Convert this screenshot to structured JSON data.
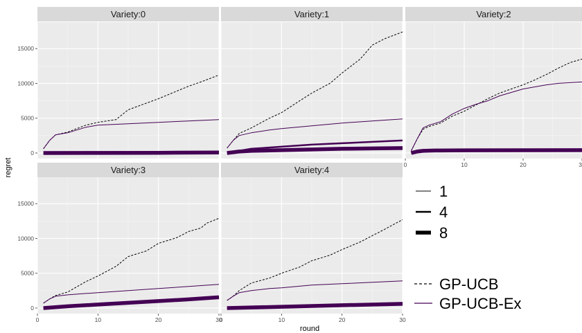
{
  "chart_data": {
    "type": "line",
    "xlabel": "round",
    "ylabel": "regret",
    "xlim": [
      0,
      30
    ],
    "ylim": [
      -800,
      18800
    ],
    "x_ticks": [
      0,
      10,
      20,
      30
    ],
    "y_ticks": [
      0,
      5000,
      10000,
      15000
    ],
    "grid": true,
    "facet_layout": "3 columns x 2 rows, shared axes",
    "legend_position": "right",
    "legend_sizes": {
      "labels": [
        "1",
        "4",
        "8"
      ],
      "line_widths": [
        1,
        2.5,
        5.5
      ]
    },
    "legend_methods": [
      {
        "label": "GP-UCB",
        "dash": "dashed",
        "color": "#000000"
      },
      {
        "label": "GP-UCB-Ex",
        "dash": "solid",
        "color": "#440154"
      }
    ],
    "panels": [
      {
        "title": "Variety:0",
        "series": [
          {
            "method": "GP-UCB",
            "size": 1,
            "x": [
              1,
              2,
              3,
              5,
              8,
              10,
              13,
              15,
              20,
              25,
              27,
              30
            ],
            "y": [
              600,
              1800,
              2600,
              3000,
              4000,
              4400,
              4800,
              6200,
              7800,
              9600,
              10200,
              11200
            ]
          },
          {
            "method": "GP-UCB-Ex",
            "size": 1,
            "x": [
              1,
              2,
              3,
              5,
              8,
              10,
              15,
              20,
              25,
              30
            ],
            "y": [
              600,
              1800,
              2600,
              2900,
              3700,
              4000,
              4200,
              4400,
              4600,
              4800
            ]
          },
          {
            "method": "GP-UCB-Ex",
            "size": 4,
            "x": [
              1,
              10,
              20,
              30
            ],
            "y": [
              0,
              10,
              30,
              80
            ]
          },
          {
            "method": "GP-UCB-Ex",
            "size": 8,
            "x": [
              1,
              10,
              20,
              30
            ],
            "y": [
              0,
              10,
              30,
              80
            ]
          }
        ]
      },
      {
        "title": "Variety:1",
        "series": [
          {
            "method": "GP-UCB",
            "size": 1,
            "x": [
              1,
              2,
              3,
              5,
              8,
              10,
              13,
              15,
              18,
              20,
              23,
              25,
              27,
              30
            ],
            "y": [
              700,
              1800,
              2800,
              3600,
              5000,
              5800,
              7500,
              8600,
              10000,
              11500,
              13500,
              15500,
              16400,
              17400
            ]
          },
          {
            "method": "GP-UCB-Ex",
            "size": 1,
            "x": [
              1,
              2,
              3,
              5,
              8,
              10,
              15,
              20,
              25,
              30
            ],
            "y": [
              700,
              1800,
              2500,
              2900,
              3300,
              3500,
              3900,
              4300,
              4600,
              4900
            ]
          },
          {
            "method": "GP-UCB-Ex",
            "size": 4,
            "x": [
              1,
              3,
              5,
              10,
              15,
              20,
              25,
              30
            ],
            "y": [
              0,
              300,
              600,
              900,
              1200,
              1400,
              1600,
              1800
            ]
          },
          {
            "method": "GP-UCB-Ex",
            "size": 8,
            "x": [
              1,
              3,
              5,
              10,
              15,
              20,
              25,
              30
            ],
            "y": [
              0,
              200,
              300,
              400,
              500,
              600,
              650,
              700
            ]
          }
        ]
      },
      {
        "title": "Variety:2",
        "series": [
          {
            "method": "GP-UCB",
            "size": 1,
            "x": [
              1,
              2,
              3,
              4,
              6,
              8,
              10,
              12,
              14,
              16,
              18,
              20,
              22,
              24,
              26,
              28,
              30
            ],
            "y": [
              300,
              2000,
              3400,
              3800,
              4300,
              5300,
              6000,
              6900,
              7800,
              8600,
              9200,
              9800,
              10500,
              11300,
              12200,
              13000,
              13500
            ]
          },
          {
            "method": "GP-UCB-Ex",
            "size": 1,
            "x": [
              1,
              2,
              3,
              4,
              6,
              8,
              10,
              12,
              14,
              16,
              18,
              20,
              22,
              24,
              26,
              28,
              30
            ],
            "y": [
              300,
              2000,
              3600,
              4000,
              4500,
              5600,
              6400,
              7000,
              7500,
              8200,
              8700,
              9200,
              9500,
              9800,
              10000,
              10100,
              10200
            ]
          },
          {
            "method": "GP-UCB-Ex",
            "size": 4,
            "x": [
              1,
              2,
              3,
              5,
              10,
              20,
              30
            ],
            "y": [
              0,
              250,
              350,
              400,
              420,
              440,
              450
            ]
          },
          {
            "method": "GP-UCB-Ex",
            "size": 8,
            "x": [
              1,
              2,
              3,
              5,
              10,
              20,
              30
            ],
            "y": [
              0,
              200,
              300,
              350,
              380,
              390,
              400
            ]
          }
        ]
      },
      {
        "title": "Variety:3",
        "series": [
          {
            "method": "GP-UCB",
            "size": 1,
            "x": [
              1,
              2,
              3,
              5,
              8,
              10,
              13,
              15,
              18,
              20,
              23,
              25,
              27,
              28,
              30
            ],
            "y": [
              700,
              1300,
              1800,
              2300,
              3800,
              4600,
              6000,
              7400,
              8200,
              9300,
              10100,
              11000,
              11500,
              12200,
              12900
            ]
          },
          {
            "method": "GP-UCB-Ex",
            "size": 1,
            "x": [
              1,
              2,
              3,
              5,
              8,
              10,
              15,
              20,
              25,
              30
            ],
            "y": [
              700,
              1300,
              1700,
              1900,
              2100,
              2200,
              2500,
              2800,
              3100,
              3400
            ]
          },
          {
            "method": "GP-UCB-Ex",
            "size": 4,
            "x": [
              1,
              5,
              10,
              15,
              20,
              25,
              30
            ],
            "y": [
              0,
              300,
              550,
              800,
              1050,
              1300,
              1600
            ]
          },
          {
            "method": "GP-UCB-Ex",
            "size": 8,
            "x": [
              1,
              5,
              10,
              15,
              20,
              25,
              30
            ],
            "y": [
              0,
              250,
              500,
              750,
              1000,
              1250,
              1550
            ]
          }
        ]
      },
      {
        "title": "Variety:4",
        "series": [
          {
            "method": "GP-UCB",
            "size": 1,
            "x": [
              1,
              2,
              3,
              5,
              8,
              10,
              13,
              15,
              18,
              20,
              23,
              25,
              27,
              30
            ],
            "y": [
              1100,
              1700,
              2500,
              3600,
              4300,
              5000,
              5900,
              6800,
              7600,
              8400,
              9500,
              10400,
              11300,
              12700
            ]
          },
          {
            "method": "GP-UCB-Ex",
            "size": 1,
            "x": [
              1,
              2,
              3,
              5,
              8,
              10,
              15,
              20,
              25,
              30
            ],
            "y": [
              1100,
              1700,
              2200,
              2500,
              2800,
              2900,
              3300,
              3500,
              3700,
              3900
            ]
          },
          {
            "method": "GP-UCB-Ex",
            "size": 4,
            "x": [
              1,
              10,
              20,
              30
            ],
            "y": [
              0,
              200,
              450,
              700
            ]
          },
          {
            "method": "GP-UCB-Ex",
            "size": 8,
            "x": [
              1,
              10,
              20,
              30
            ],
            "y": [
              0,
              180,
              400,
              600
            ]
          }
        ]
      }
    ]
  }
}
